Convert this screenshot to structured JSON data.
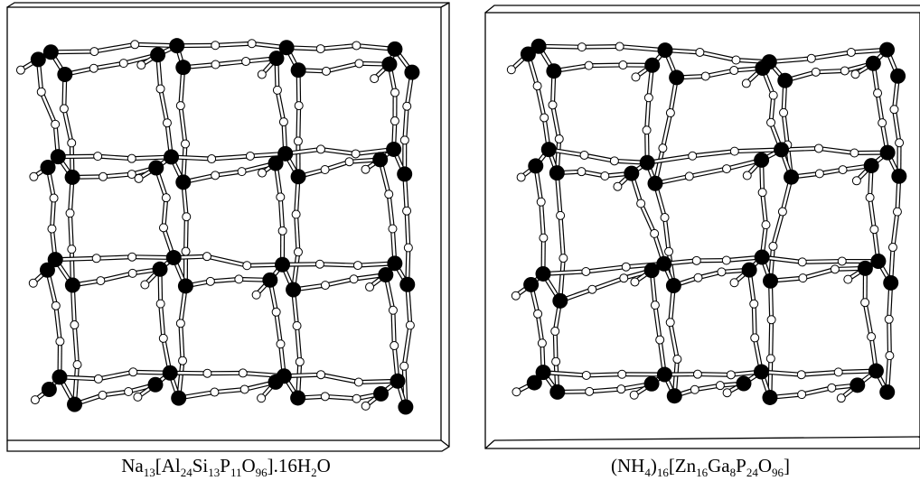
{
  "panels": [
    {
      "caption": [
        {
          "text": "Na"
        },
        {
          "sub": "13"
        },
        {
          "text": "[Al"
        },
        {
          "sub": "24"
        },
        {
          "text": "Si"
        },
        {
          "sub": "13"
        },
        {
          "text": "P"
        },
        {
          "sub": "11"
        },
        {
          "text": "O"
        },
        {
          "sub": "96"
        },
        {
          "text": "].16H"
        },
        {
          "sub": "2"
        },
        {
          "text": "O"
        }
      ]
    },
    {
      "caption": [
        {
          "text": "(NH"
        },
        {
          "sub": "4"
        },
        {
          "text": ")"
        },
        {
          "sub": "16"
        },
        {
          "text": "[Zn"
        },
        {
          "sub": "16"
        },
        {
          "text": "Ga"
        },
        {
          "sub": "8"
        },
        {
          "text": "P"
        },
        {
          "sub": "24"
        },
        {
          "text": "O"
        },
        {
          "sub": "96"
        },
        {
          "text": "]"
        }
      ]
    }
  ]
}
